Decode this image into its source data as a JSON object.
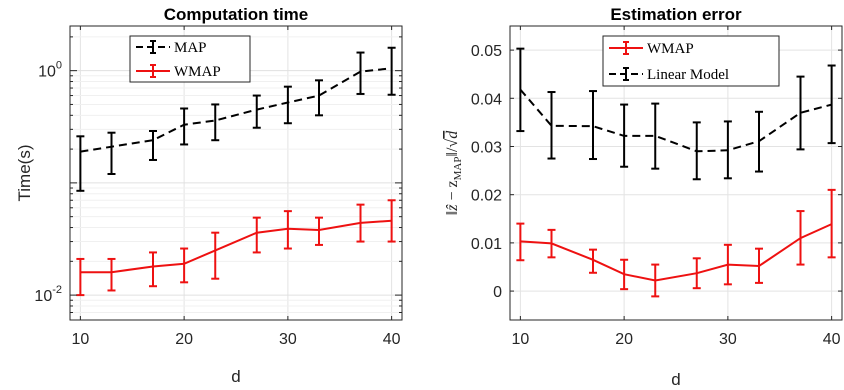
{
  "chart_data": [
    {
      "type": "line",
      "title": "Computation time",
      "xlabel": "d",
      "ylabel": "Time(s)",
      "yscale": "log",
      "xlim": [
        9,
        41
      ],
      "ylim": [
        0.006,
        2.5
      ],
      "xticks": [
        10,
        20,
        30,
        40
      ],
      "xtick_labels": [
        "10",
        "20",
        "30",
        "40"
      ],
      "yticks": [
        0.01,
        1
      ],
      "ytick_labels": {
        "base": "10",
        "exps": [
          "-2",
          "0"
        ]
      },
      "grid": true,
      "legend_position": "top",
      "x": [
        10,
        13,
        17,
        20,
        23,
        27,
        30,
        33,
        37,
        40
      ],
      "series": [
        {
          "name": "MAP",
          "color": "#000000",
          "style": "dashed",
          "values": [
            0.19,
            0.21,
            0.24,
            0.33,
            0.36,
            0.45,
            0.52,
            0.6,
            0.98,
            1.05
          ],
          "err_low": [
            0.085,
            0.12,
            0.16,
            0.22,
            0.24,
            0.31,
            0.34,
            0.4,
            0.62,
            0.61
          ],
          "err_high": [
            0.26,
            0.28,
            0.29,
            0.46,
            0.5,
            0.6,
            0.72,
            0.82,
            1.45,
            1.6
          ]
        },
        {
          "name": "WMAP",
          "color": "#ee1111",
          "style": "solid",
          "values": [
            0.016,
            0.016,
            0.018,
            0.019,
            0.025,
            0.036,
            0.039,
            0.038,
            0.044,
            0.046
          ],
          "err_low": [
            0.01,
            0.011,
            0.012,
            0.013,
            0.014,
            0.024,
            0.026,
            0.028,
            0.03,
            0.03
          ],
          "err_high": [
            0.021,
            0.021,
            0.024,
            0.026,
            0.036,
            0.049,
            0.056,
            0.049,
            0.064,
            0.07
          ]
        }
      ]
    },
    {
      "type": "line",
      "title": "Estimation error",
      "xlabel": "d",
      "ylabel": "‖ẑ − z_MAP‖/√d",
      "ylabel_parts": {
        "open": "‖",
        "zhat": "ẑ",
        "minus": " − z",
        "sub": "MAP",
        "close": "‖/√",
        "d": "d"
      },
      "xlim": [
        9,
        41
      ],
      "ylim": [
        -0.006,
        0.055
      ],
      "xticks": [
        10,
        20,
        30,
        40
      ],
      "xtick_labels": [
        "10",
        "20",
        "30",
        "40"
      ],
      "yticks": [
        0,
        0.01,
        0.02,
        0.03,
        0.04,
        0.05
      ],
      "ytick_labels": [
        "0",
        "0.01",
        "0.02",
        "0.03",
        "0.04",
        "0.05"
      ],
      "grid": true,
      "legend_position": "top",
      "x": [
        10,
        13,
        17,
        20,
        23,
        27,
        30,
        33,
        37,
        40
      ],
      "series": [
        {
          "name": "WMAP",
          "color": "#ee1111",
          "style": "solid",
          "values": [
            0.0103,
            0.0099,
            0.0065,
            0.0035,
            0.0022,
            0.0037,
            0.0055,
            0.0052,
            0.011,
            0.0139
          ],
          "err_low": [
            0.0064,
            0.007,
            0.0038,
            0.0004,
            -0.0011,
            0.0006,
            0.0014,
            0.0017,
            0.0055,
            0.007
          ],
          "err_high": [
            0.014,
            0.0127,
            0.0086,
            0.0065,
            0.0055,
            0.0068,
            0.0096,
            0.0088,
            0.0166,
            0.021
          ]
        },
        {
          "name": "Linear Model",
          "color": "#000000",
          "style": "dashed",
          "values": [
            0.0418,
            0.0343,
            0.0342,
            0.0322,
            0.0322,
            0.029,
            0.0292,
            0.0311,
            0.037,
            0.0387
          ],
          "err_low": [
            0.0332,
            0.0275,
            0.0274,
            0.0258,
            0.0254,
            0.0232,
            0.0234,
            0.0248,
            0.0294,
            0.0307
          ],
          "err_high": [
            0.0503,
            0.0413,
            0.0415,
            0.0387,
            0.0389,
            0.035,
            0.0352,
            0.0372,
            0.0445,
            0.0468
          ]
        }
      ]
    }
  ]
}
